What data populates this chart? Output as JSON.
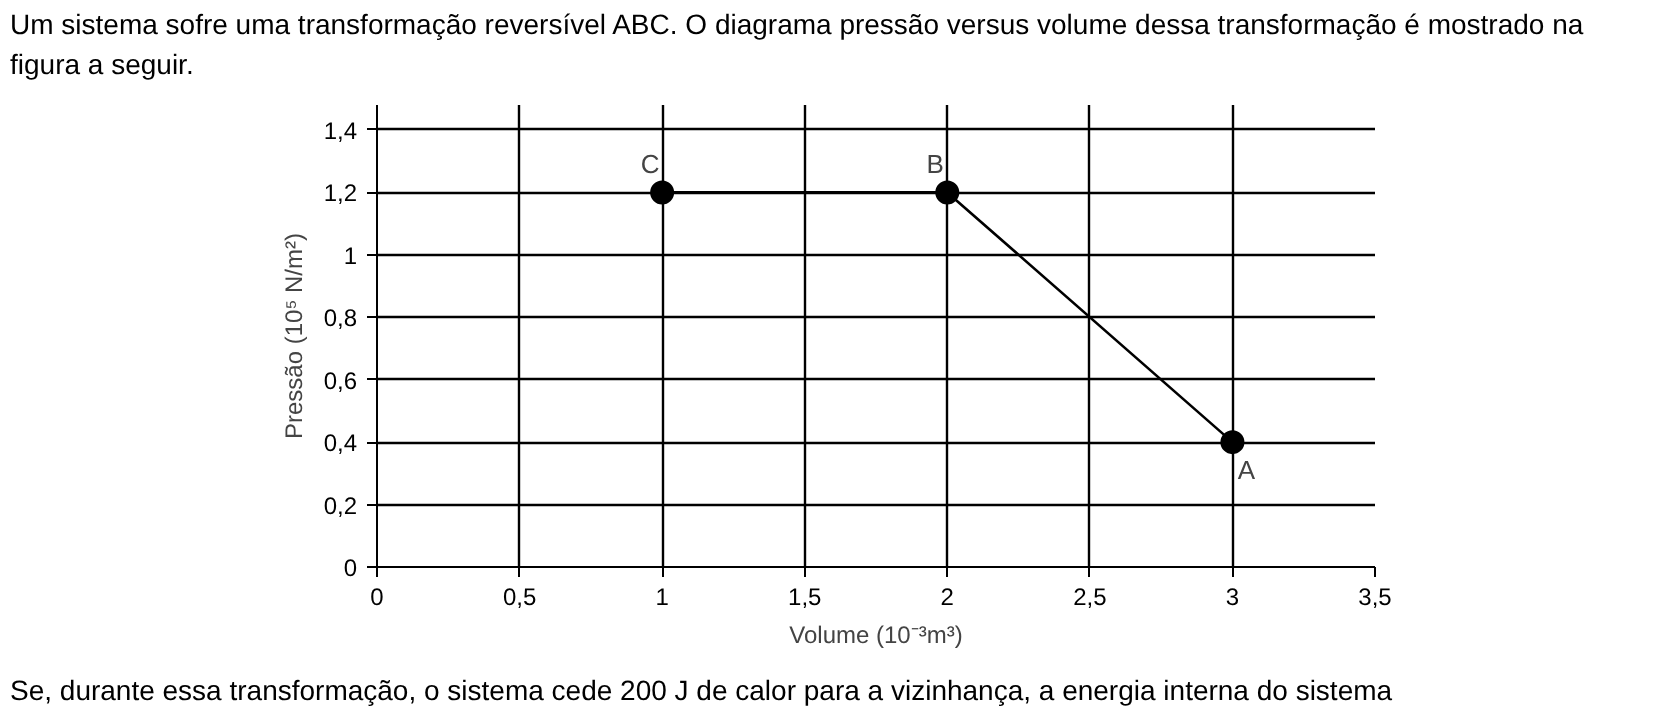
{
  "chart_data": {
    "type": "line",
    "title": "Um sistema sofre uma transformação reversível ABC. O diagrama pressão versus volume dessa transformação é mostrado na figura a seguir.",
    "xlabel": "Volume (10⁻³m³)",
    "ylabel": "Pressão (10⁵ N/m²)",
    "x": [
      3,
      2,
      1
    ],
    "series": [
      {
        "color": "#000000",
        "values": [
          0.4,
          1.2,
          1.2
        ]
      }
    ],
    "marker": "circle",
    "line_style": "solid",
    "grid": true,
    "xlim": [
      0,
      3.5
    ],
    "ylim": [
      0,
      1.48
    ],
    "xticks": [
      0,
      {
        "value": 0.5,
        "label": "0,5"
      },
      1,
      {
        "value": 1.5,
        "label": "1,5"
      },
      2,
      {
        "value": 2.5,
        "label": "2,5"
      },
      3,
      {
        "value": 3.5,
        "label": "3,5"
      }
    ],
    "yticks": [
      0,
      {
        "value": 0.2,
        "label": "0,2"
      },
      {
        "value": 0.4,
        "label": "0,4"
      },
      {
        "value": 0.6,
        "label": "0,6"
      },
      {
        "value": 0.8,
        "label": "0,8"
      },
      1,
      {
        "value": 1.2,
        "label": "1,2"
      },
      {
        "value": 1.4,
        "label": "1,4"
      }
    ],
    "annotations": [
      {
        "text": "C",
        "x": 1,
        "y": 1.2
      },
      {
        "text": "B",
        "x": 2,
        "y": 1.2
      },
      {
        "text": "A",
        "x": 3,
        "y": 0.4
      },
      "Se, durante essa transformação, o sistema cede 200 J de calor para a vizinhança, a energia interna do sistema"
    ]
  }
}
